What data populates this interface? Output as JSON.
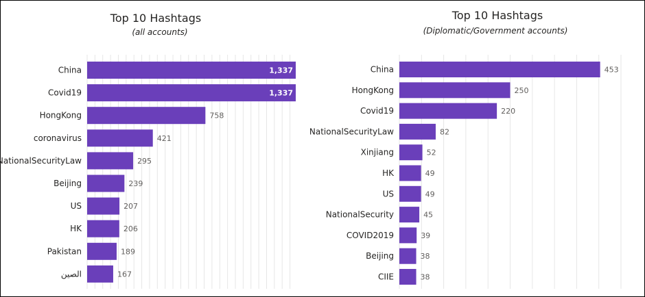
{
  "chart_data": [
    {
      "type": "bar",
      "orientation": "horizontal",
      "title": "Top 10 Hashtags",
      "subtitle": "(all accounts)",
      "categories": [
        "China",
        "Covid19",
        "HongKong",
        "coronavirus",
        "NationalSecurityLaw",
        "Beijing",
        "US",
        "HK",
        "Pakistan",
        "الصين"
      ],
      "values": [
        1337,
        1337,
        758,
        421,
        295,
        239,
        207,
        206,
        189,
        167
      ],
      "value_labels": [
        "1,337",
        "1,337",
        "758",
        "421",
        "295",
        "239",
        "207",
        "206",
        "189",
        "167"
      ],
      "xlim": [
        0,
        1337
      ],
      "grid": true,
      "bar_color": "#6a3fba"
    },
    {
      "type": "bar",
      "orientation": "horizontal",
      "title": "Top 10 Hashtags",
      "subtitle": "(Diplomatic/Government accounts)",
      "categories": [
        "China",
        "HongKong",
        "Covid19",
        "NationalSecurityLaw",
        "Xinjiang",
        "HK",
        "US",
        "NationalSecurity",
        "COVID2019",
        "Beijing",
        "CIIE"
      ],
      "values": [
        453,
        250,
        220,
        82,
        52,
        49,
        49,
        45,
        39,
        38,
        38
      ],
      "value_labels": [
        "453",
        "250",
        "220",
        "82",
        "52",
        "49",
        "49",
        "45",
        "39",
        "38",
        "38"
      ],
      "xlim": [
        0,
        500
      ],
      "grid": true,
      "bar_color": "#6a3fba"
    }
  ]
}
